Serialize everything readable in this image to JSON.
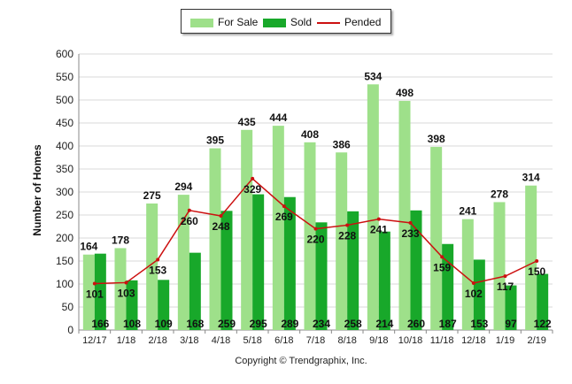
{
  "chart_data": {
    "type": "bar",
    "categories": [
      "12/17",
      "1/18",
      "2/18",
      "3/18",
      "4/18",
      "5/18",
      "6/18",
      "7/18",
      "8/18",
      "9/18",
      "10/18",
      "11/18",
      "12/18",
      "1/19",
      "2/19"
    ],
    "series": [
      {
        "name": "For Sale",
        "type": "bar",
        "color": "#9ee08a",
        "values": [
          164,
          178,
          275,
          294,
          395,
          435,
          444,
          408,
          386,
          534,
          498,
          398,
          241,
          278,
          314
        ]
      },
      {
        "name": "Sold",
        "type": "bar",
        "color": "#18a82a",
        "values": [
          166,
          108,
          109,
          168,
          259,
          295,
          289,
          234,
          258,
          214,
          260,
          187,
          153,
          97,
          122
        ]
      },
      {
        "name": "Pended",
        "type": "line",
        "color": "#cc1010",
        "values": [
          101,
          103,
          153,
          260,
          248,
          329,
          269,
          220,
          228,
          241,
          233,
          159,
          102,
          117,
          150
        ]
      }
    ],
    "ylabel": "Number of Homes",
    "ylim": [
      0,
      600
    ],
    "yticks": [
      0,
      50,
      100,
      150,
      200,
      250,
      300,
      350,
      400,
      450,
      500,
      550,
      600
    ],
    "grid": true,
    "legend_position": "top"
  },
  "credit": "Copyright © Trendgraphix, Inc."
}
